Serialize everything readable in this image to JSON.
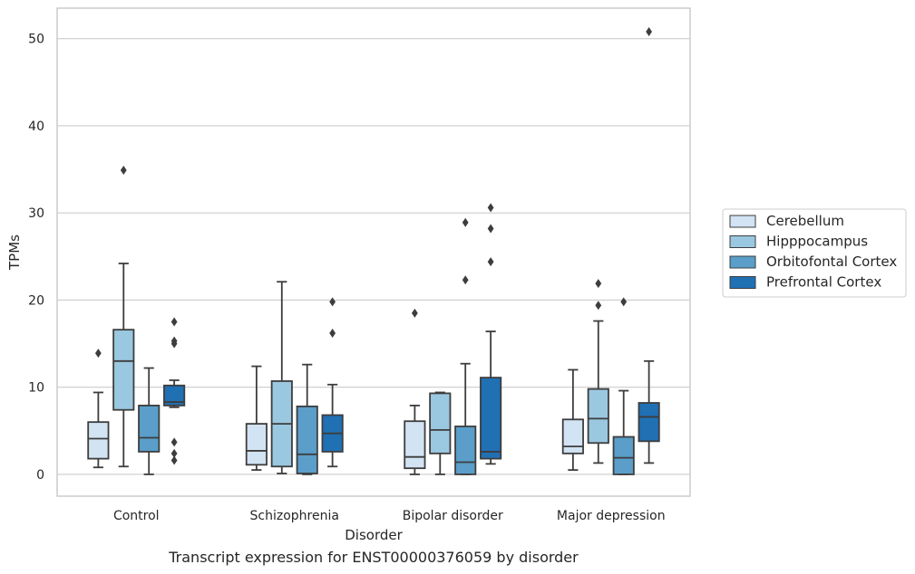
{
  "caption": "Transcript expression for ENST00000376059 by disorder",
  "chart_data": {
    "type": "box",
    "xlabel": "Disorder",
    "ylabel": "TPMs",
    "ylim": [
      -2.5,
      53.5
    ],
    "yticks": [
      0,
      10,
      20,
      30,
      40,
      50
    ],
    "grid": "horizontal",
    "legend_position": "right",
    "categories": [
      "Control",
      "Schizophrenia",
      "Bipolar disorder",
      "Major depression"
    ],
    "series": [
      {
        "name": "Cerebellum",
        "color": "#d2e3f3",
        "boxes": [
          {
            "whisker_low": 0.8,
            "q1": 1.8,
            "median": 4.1,
            "q3": 6.0,
            "whisker_high": 9.4,
            "outliers": [
              13.9
            ]
          },
          {
            "whisker_low": 0.5,
            "q1": 1.1,
            "median": 2.7,
            "q3": 5.8,
            "whisker_high": 12.4,
            "outliers": []
          },
          {
            "whisker_low": 0.0,
            "q1": 0.7,
            "median": 2.0,
            "q3": 6.1,
            "whisker_high": 7.9,
            "outliers": [
              18.5
            ]
          },
          {
            "whisker_low": 0.5,
            "q1": 2.4,
            "median": 3.2,
            "q3": 6.3,
            "whisker_high": 12.0,
            "outliers": []
          }
        ]
      },
      {
        "name": "Hipppocampus",
        "color": "#9ac8e0",
        "boxes": [
          {
            "whisker_low": 0.9,
            "q1": 7.4,
            "median": 13.0,
            "q3": 16.6,
            "whisker_high": 24.2,
            "outliers": [
              34.9
            ]
          },
          {
            "whisker_low": 0.1,
            "q1": 0.9,
            "median": 5.8,
            "q3": 10.7,
            "whisker_high": 22.1,
            "outliers": []
          },
          {
            "whisker_low": 0.0,
            "q1": 2.4,
            "median": 5.1,
            "q3": 9.3,
            "whisker_high": 9.4,
            "outliers": []
          },
          {
            "whisker_low": 1.3,
            "q1": 3.6,
            "median": 6.4,
            "q3": 9.8,
            "whisker_high": 17.6,
            "outliers": [
              19.4,
              21.9
            ]
          }
        ]
      },
      {
        "name": "Orbitofontal Cortex",
        "color": "#5a9ec9",
        "boxes": [
          {
            "whisker_low": 0.0,
            "q1": 2.6,
            "median": 4.2,
            "q3": 7.9,
            "whisker_high": 12.2,
            "outliers": []
          },
          {
            "whisker_low": 0.0,
            "q1": 0.1,
            "median": 2.3,
            "q3": 7.8,
            "whisker_high": 12.6,
            "outliers": []
          },
          {
            "whisker_low": 0.0,
            "q1": 0.0,
            "median": 1.4,
            "q3": 5.5,
            "whisker_high": 12.7,
            "outliers": [
              22.3,
              28.9
            ]
          },
          {
            "whisker_low": 0.0,
            "q1": 0.0,
            "median": 1.9,
            "q3": 4.3,
            "whisker_high": 9.6,
            "outliers": [
              19.8
            ]
          }
        ]
      },
      {
        "name": "Prefrontal Cortex",
        "color": "#2070b4",
        "boxes": [
          {
            "whisker_low": 7.7,
            "q1": 7.9,
            "median": 8.3,
            "q3": 10.2,
            "whisker_high": 10.8,
            "outliers": [
              1.6,
              2.4,
              3.7,
              15.0,
              15.3,
              17.5
            ]
          },
          {
            "whisker_low": 0.9,
            "q1": 2.6,
            "median": 4.7,
            "q3": 6.8,
            "whisker_high": 10.3,
            "outliers": [
              16.2,
              19.8
            ]
          },
          {
            "whisker_low": 1.2,
            "q1": 1.8,
            "median": 2.6,
            "q3": 11.1,
            "whisker_high": 16.4,
            "outliers": [
              24.4,
              28.2,
              30.6
            ]
          },
          {
            "whisker_low": 1.3,
            "q1": 3.8,
            "median": 6.6,
            "q3": 8.2,
            "whisker_high": 13.0,
            "outliers": [
              50.8
            ]
          }
        ]
      }
    ]
  }
}
